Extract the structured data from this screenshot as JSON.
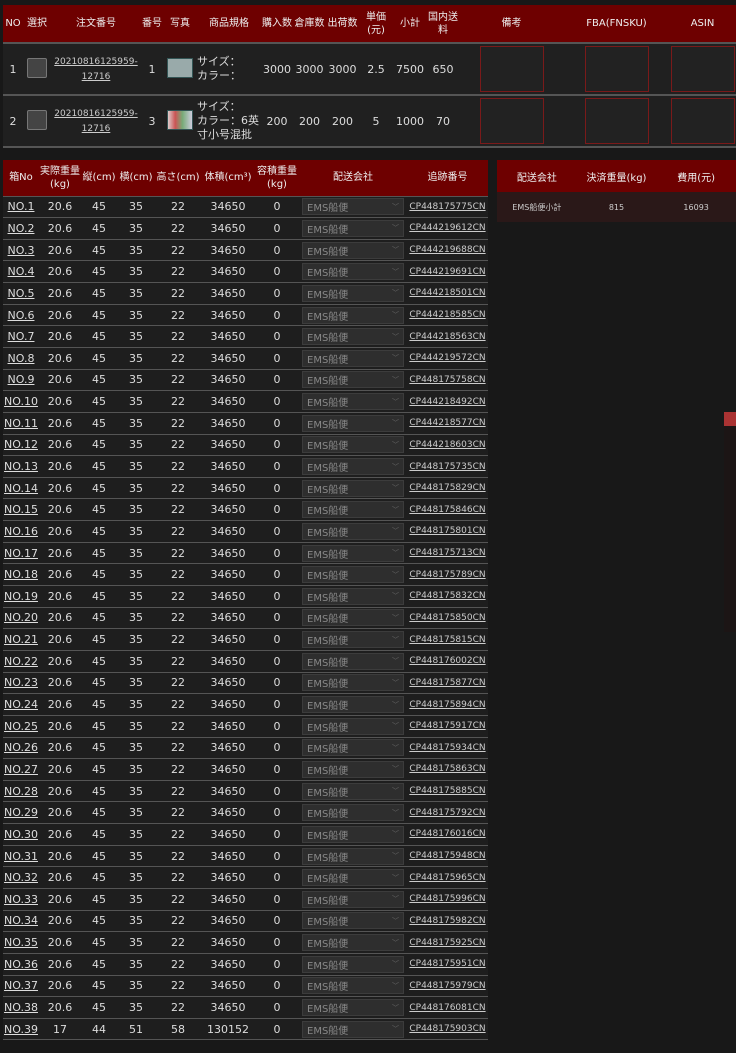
{
  "order_table": {
    "headers": [
      "NO",
      "選択",
      "注文番号",
      "番号",
      "写真",
      "商品規格",
      "購入数",
      "倉庫数",
      "出荷数",
      "単価(元)",
      "小計",
      "国内送料",
      "備考",
      "FBA(FNSKU)",
      "ASIN"
    ],
    "rows": [
      {
        "no": "1",
        "order": "20210816125959-12716",
        "num": "1",
        "spec": [
          "サイズ：",
          "カラー："
        ],
        "purchase": "3000",
        "warehouse": "3000",
        "ship": "3000",
        "price": "2.5",
        "subtotal": "7500",
        "domestic": "650"
      },
      {
        "no": "2",
        "order": "20210816125959-12716",
        "num": "3",
        "spec": [
          "サイズ：",
          "カラー：6英寸小号混批"
        ],
        "purchase": "200",
        "warehouse": "200",
        "ship": "200",
        "price": "5",
        "subtotal": "1000",
        "domestic": "70"
      }
    ]
  },
  "box_table": {
    "headers": [
      "箱No",
      "実際重量(kg)",
      "縦(cm)",
      "横(cm)",
      "高さ(cm)",
      "体積(cm³)",
      "容積重量(kg)",
      "配送会社",
      "追跡番号"
    ],
    "rows": [
      [
        "NO.1",
        "20.6",
        "45",
        "35",
        "22",
        "34650",
        "0",
        "EMS船便",
        "CP448175775CN"
      ],
      [
        "NO.2",
        "20.6",
        "45",
        "35",
        "22",
        "34650",
        "0",
        "EMS船便",
        "CP444219612CN"
      ],
      [
        "NO.3",
        "20.6",
        "45",
        "35",
        "22",
        "34650",
        "0",
        "EMS船便",
        "CP444219688CN"
      ],
      [
        "NO.4",
        "20.6",
        "45",
        "35",
        "22",
        "34650",
        "0",
        "EMS船便",
        "CP444219691CN"
      ],
      [
        "NO.5",
        "20.6",
        "45",
        "35",
        "22",
        "34650",
        "0",
        "EMS船便",
        "CP444218501CN"
      ],
      [
        "NO.6",
        "20.6",
        "45",
        "35",
        "22",
        "34650",
        "0",
        "EMS船便",
        "CP444218585CN"
      ],
      [
        "NO.7",
        "20.6",
        "45",
        "35",
        "22",
        "34650",
        "0",
        "EMS船便",
        "CP444218563CN"
      ],
      [
        "NO.8",
        "20.6",
        "45",
        "35",
        "22",
        "34650",
        "0",
        "EMS船便",
        "CP444219572CN"
      ],
      [
        "NO.9",
        "20.6",
        "45",
        "35",
        "22",
        "34650",
        "0",
        "EMS船便",
        "CP448175758CN"
      ],
      [
        "NO.10",
        "20.6",
        "45",
        "35",
        "22",
        "34650",
        "0",
        "EMS船便",
        "CP444218492CN"
      ],
      [
        "NO.11",
        "20.6",
        "45",
        "35",
        "22",
        "34650",
        "0",
        "EMS船便",
        "CP444218577CN"
      ],
      [
        "NO.12",
        "20.6",
        "45",
        "35",
        "22",
        "34650",
        "0",
        "EMS船便",
        "CP444218603CN"
      ],
      [
        "NO.13",
        "20.6",
        "45",
        "35",
        "22",
        "34650",
        "0",
        "EMS船便",
        "CP448175735CN"
      ],
      [
        "NO.14",
        "20.6",
        "45",
        "35",
        "22",
        "34650",
        "0",
        "EMS船便",
        "CP448175829CN"
      ],
      [
        "NO.15",
        "20.6",
        "45",
        "35",
        "22",
        "34650",
        "0",
        "EMS船便",
        "CP448175846CN"
      ],
      [
        "NO.16",
        "20.6",
        "45",
        "35",
        "22",
        "34650",
        "0",
        "EMS船便",
        "CP448175801CN"
      ],
      [
        "NO.17",
        "20.6",
        "45",
        "35",
        "22",
        "34650",
        "0",
        "EMS船便",
        "CP448175713CN"
      ],
      [
        "NO.18",
        "20.6",
        "45",
        "35",
        "22",
        "34650",
        "0",
        "EMS船便",
        "CP448175789CN"
      ],
      [
        "NO.19",
        "20.6",
        "45",
        "35",
        "22",
        "34650",
        "0",
        "EMS船便",
        "CP448175832CN"
      ],
      [
        "NO.20",
        "20.6",
        "45",
        "35",
        "22",
        "34650",
        "0",
        "EMS船便",
        "CP448175850CN"
      ],
      [
        "NO.21",
        "20.6",
        "45",
        "35",
        "22",
        "34650",
        "0",
        "EMS船便",
        "CP448175815CN"
      ],
      [
        "NO.22",
        "20.6",
        "45",
        "35",
        "22",
        "34650",
        "0",
        "EMS船便",
        "CP448176002CN"
      ],
      [
        "NO.23",
        "20.6",
        "45",
        "35",
        "22",
        "34650",
        "0",
        "EMS船便",
        "CP448175877CN"
      ],
      [
        "NO.24",
        "20.6",
        "45",
        "35",
        "22",
        "34650",
        "0",
        "EMS船便",
        "CP448175894CN"
      ],
      [
        "NO.25",
        "20.6",
        "45",
        "35",
        "22",
        "34650",
        "0",
        "EMS船便",
        "CP448175917CN"
      ],
      [
        "NO.26",
        "20.6",
        "45",
        "35",
        "22",
        "34650",
        "0",
        "EMS船便",
        "CP448175934CN"
      ],
      [
        "NO.27",
        "20.6",
        "45",
        "35",
        "22",
        "34650",
        "0",
        "EMS船便",
        "CP448175863CN"
      ],
      [
        "NO.28",
        "20.6",
        "45",
        "35",
        "22",
        "34650",
        "0",
        "EMS船便",
        "CP448175885CN"
      ],
      [
        "NO.29",
        "20.6",
        "45",
        "35",
        "22",
        "34650",
        "0",
        "EMS船便",
        "CP448175792CN"
      ],
      [
        "NO.30",
        "20.6",
        "45",
        "35",
        "22",
        "34650",
        "0",
        "EMS船便",
        "CP448176016CN"
      ],
      [
        "NO.31",
        "20.6",
        "45",
        "35",
        "22",
        "34650",
        "0",
        "EMS船便",
        "CP448175948CN"
      ],
      [
        "NO.32",
        "20.6",
        "45",
        "35",
        "22",
        "34650",
        "0",
        "EMS船便",
        "CP448175965CN"
      ],
      [
        "NO.33",
        "20.6",
        "45",
        "35",
        "22",
        "34650",
        "0",
        "EMS船便",
        "CP448175996CN"
      ],
      [
        "NO.34",
        "20.6",
        "45",
        "35",
        "22",
        "34650",
        "0",
        "EMS船便",
        "CP448175982CN"
      ],
      [
        "NO.35",
        "20.6",
        "45",
        "35",
        "22",
        "34650",
        "0",
        "EMS船便",
        "CP448175925CN"
      ],
      [
        "NO.36",
        "20.6",
        "45",
        "35",
        "22",
        "34650",
        "0",
        "EMS船便",
        "CP448175951CN"
      ],
      [
        "NO.37",
        "20.6",
        "45",
        "35",
        "22",
        "34650",
        "0",
        "EMS船便",
        "CP448175979CN"
      ],
      [
        "NO.38",
        "20.6",
        "45",
        "35",
        "22",
        "34650",
        "0",
        "EMS船便",
        "CP448176081CN"
      ],
      [
        "NO.39",
        "17",
        "44",
        "51",
        "58",
        "130152",
        "0",
        "EMS船便",
        "CP448175903CN"
      ]
    ]
  },
  "summary_table": {
    "headers": [
      "配送会社",
      "決済重量(kg)",
      "費用(元)"
    ],
    "rows": [
      [
        "EMS船便小計",
        "815",
        "16093"
      ]
    ]
  },
  "colors": {
    "header_bg": "#6e0000",
    "page_bg": "#181818"
  }
}
